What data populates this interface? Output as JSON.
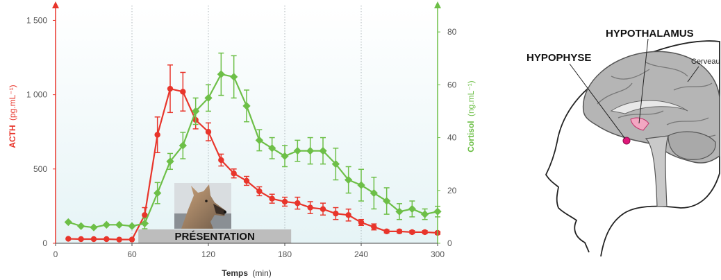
{
  "chart_data": {
    "type": "line",
    "xlabel": "Temps",
    "xunit": "(min)",
    "ylabel_left": "ACTH",
    "ylabel_left_unit": "(pg.mL⁻¹)",
    "ylabel_right": "Cortisol",
    "ylabel_right_unit": "(ng.mL⁻¹)",
    "xlim": [
      0,
      300
    ],
    "ylim_left": [
      0,
      1600
    ],
    "ylim_right": [
      0,
      90
    ],
    "x_ticks": [
      "0",
      "60",
      "120",
      "180",
      "240",
      "300"
    ],
    "y_left_ticks": [
      "0",
      "500",
      "1 000",
      "1 500"
    ],
    "y_right_ticks": [
      "0",
      "20",
      "40",
      "60",
      "80"
    ],
    "grid": "vertical dotted",
    "stimulus_label": "PRÉSENTATION",
    "stimulus_range": [
      65,
      185
    ],
    "colors": {
      "acth": "#e8352b",
      "cortisol": "#6dbf47",
      "background": "#eaf6f8"
    },
    "series": [
      {
        "name": "ACTH",
        "axis": "left",
        "x": [
          10,
          20,
          30,
          40,
          50,
          60,
          70,
          80,
          90,
          100,
          110,
          120,
          130,
          140,
          150,
          160,
          170,
          180,
          190,
          200,
          210,
          220,
          230,
          240,
          250,
          260,
          270,
          280,
          290,
          300
        ],
        "values": [
          30,
          28,
          28,
          28,
          25,
          25,
          190,
          730,
          1040,
          1020,
          830,
          750,
          560,
          470,
          420,
          350,
          300,
          280,
          270,
          240,
          230,
          200,
          190,
          140,
          110,
          80,
          80,
          75,
          75,
          70
        ],
        "errors": [
          0,
          0,
          0,
          0,
          0,
          0,
          50,
          120,
          160,
          130,
          60,
          60,
          40,
          30,
          30,
          30,
          30,
          30,
          40,
          40,
          40,
          40,
          40,
          20,
          20,
          10,
          10,
          10,
          10,
          10
        ]
      },
      {
        "name": "Cortisol",
        "axis": "right",
        "x": [
          10,
          20,
          30,
          40,
          50,
          60,
          70,
          80,
          90,
          100,
          110,
          120,
          130,
          140,
          150,
          160,
          170,
          180,
          190,
          200,
          210,
          220,
          230,
          240,
          250,
          260,
          270,
          280,
          290,
          300
        ],
        "values": [
          8,
          6.5,
          6,
          7,
          7,
          6.5,
          7.5,
          19,
          31,
          37,
          50,
          55,
          64,
          63,
          52,
          39,
          36,
          33,
          35,
          35,
          35,
          30,
          24,
          22,
          19,
          16,
          12,
          13,
          11,
          12
        ],
        "errors": [
          0,
          0,
          0,
          0,
          0,
          0,
          2,
          4,
          3,
          5,
          5,
          5,
          8,
          8,
          6,
          4,
          4,
          4,
          4,
          5,
          5,
          6,
          5,
          6,
          6,
          5,
          3,
          3,
          2,
          2
        ]
      }
    ]
  },
  "diagram": {
    "labels": {
      "hypothalamus": "HYPOTHALAMUS",
      "hypophyse": "HYPOPHYSE",
      "cerveau": "Cerveau"
    }
  }
}
